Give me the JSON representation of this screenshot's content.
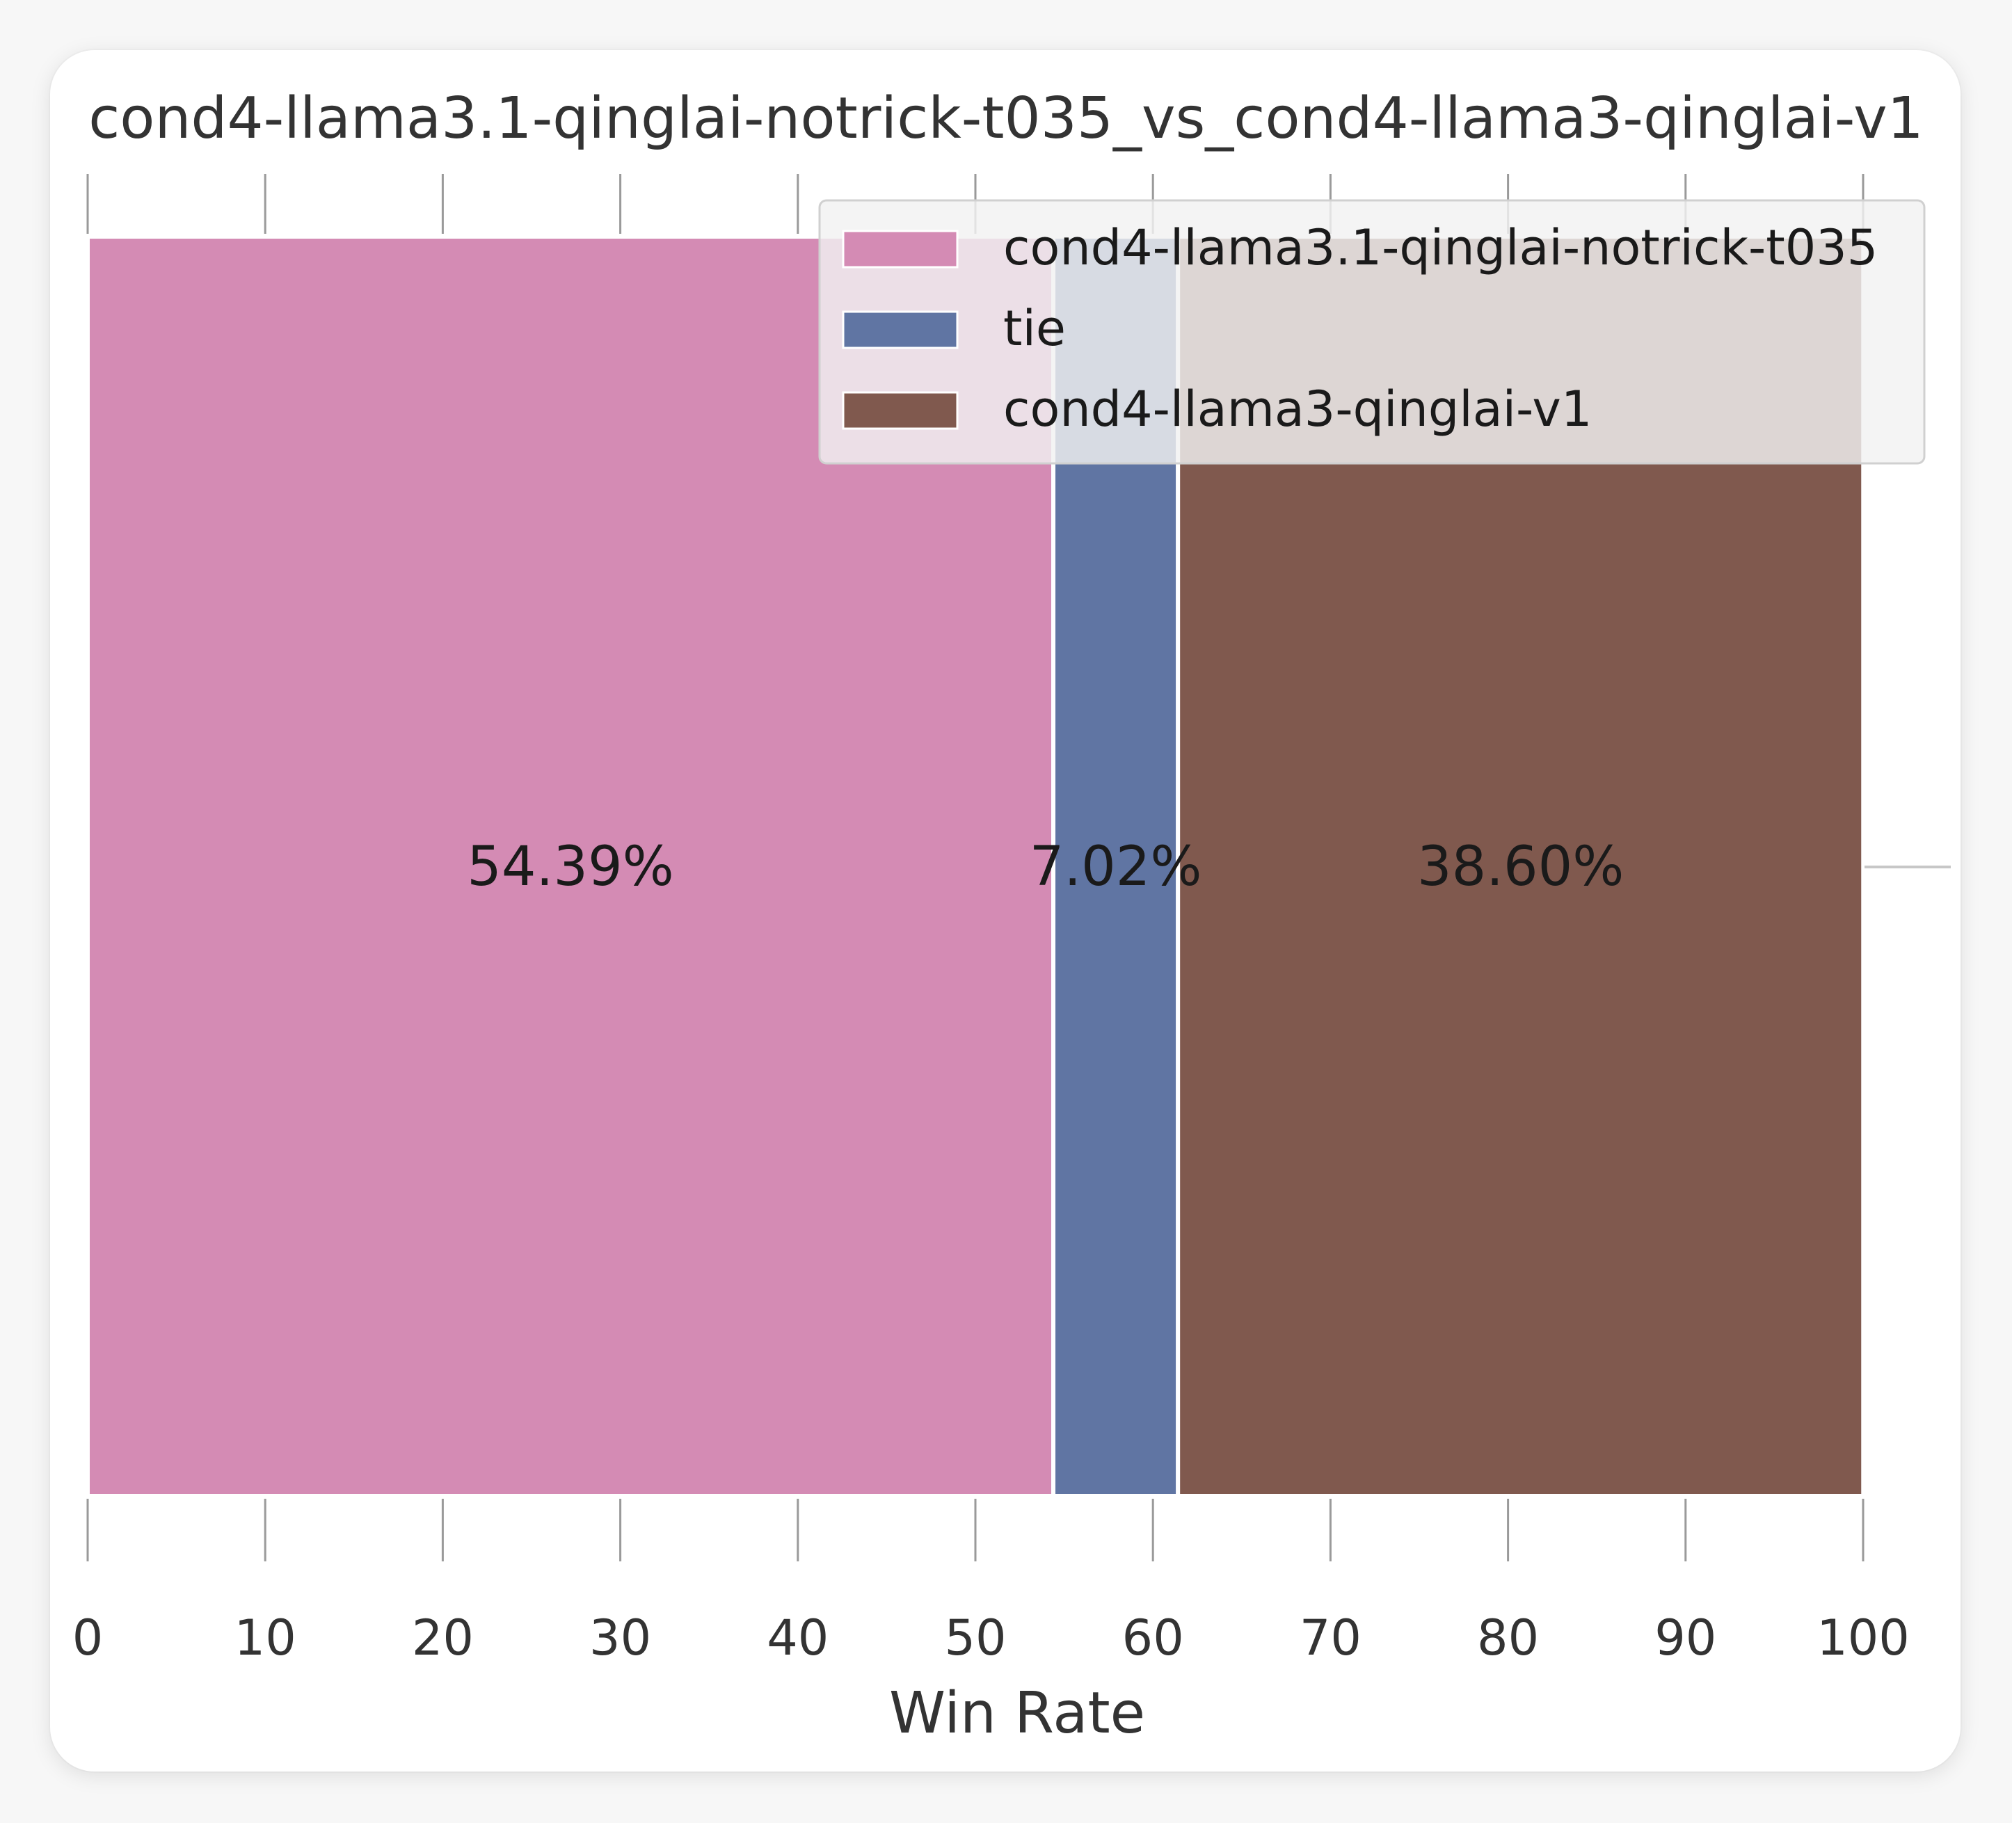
{
  "chart_data": {
    "type": "bar",
    "orientation": "horizontal",
    "stacked": true,
    "title": "cond4-llama3.1-qinglai-notrick-t035_vs_cond4-llama3-qinglai-v1",
    "xlabel": "Win Rate",
    "ylabel": "",
    "xlim": [
      0,
      100
    ],
    "xticks": [
      "0",
      "10",
      "20",
      "30",
      "40",
      "50",
      "60",
      "70",
      "80",
      "90",
      "100"
    ],
    "grid": false,
    "legend_position": "top-right",
    "series": [
      {
        "name": "cond4-llama3.1-qinglai-notrick-t035",
        "value": 54.39,
        "label": "54.39%",
        "color": "#d48bb4"
      },
      {
        "name": "tie",
        "value": 7.02,
        "label": "7.02%",
        "color": "#6075a3"
      },
      {
        "name": "cond4-llama3-qinglai-v1",
        "value": 38.6,
        "label": "38.60%",
        "color": "#80594e"
      }
    ]
  }
}
